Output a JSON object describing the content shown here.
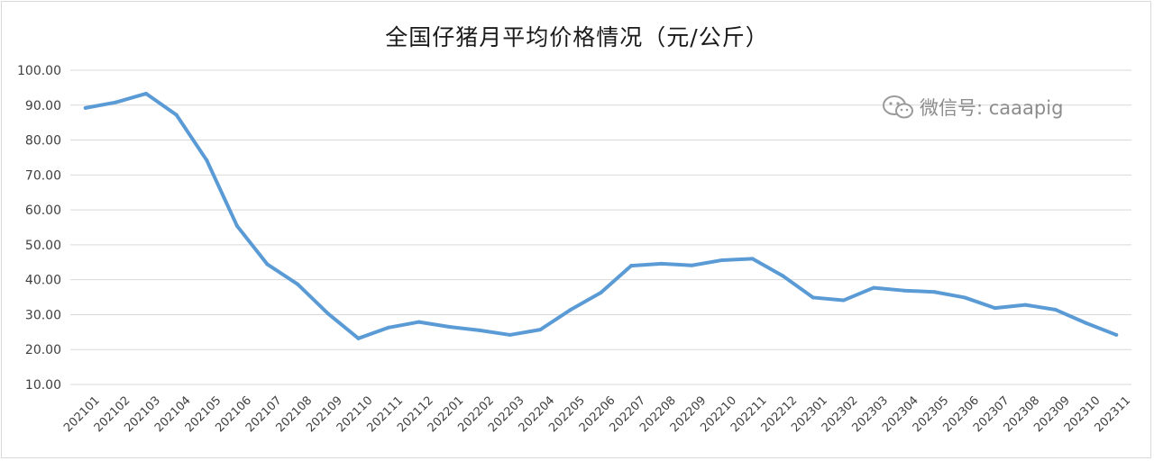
{
  "chart_data": {
    "type": "line",
    "title": "全国仔猪月平均价格情况（元/公斤）",
    "xlabel": "",
    "ylabel": "",
    "ylim": [
      10,
      100
    ],
    "yticks": [
      "100.00",
      "90.00",
      "80.00",
      "70.00",
      "60.00",
      "50.00",
      "40.00",
      "30.00",
      "20.00",
      "10.00"
    ],
    "grid": true,
    "legend": "none",
    "line_color": "#5b9bd5",
    "categories": [
      "202101",
      "202102",
      "202103",
      "202104",
      "202105",
      "202106",
      "202107",
      "202108",
      "202109",
      "202110",
      "202111",
      "202112",
      "202201",
      "202202",
      "202203",
      "202204",
      "202205",
      "202206",
      "202207",
      "202208",
      "202209",
      "202210",
      "202211",
      "202212",
      "202301",
      "202302",
      "202303",
      "202304",
      "202305",
      "202306",
      "202307",
      "202308",
      "202309",
      "202310",
      "202311"
    ],
    "series": [
      {
        "values": [
          89.2,
          90.8,
          93.3,
          87.2,
          74.2,
          55.4,
          44.4,
          38.7,
          30.3,
          23.2,
          26.3,
          27.9,
          26.5,
          25.5,
          24.2,
          25.7,
          31.4,
          36.3,
          44.0,
          44.6,
          44.1,
          45.6,
          46.0,
          41.1,
          34.9,
          34.1,
          37.7,
          36.9,
          36.5,
          34.9,
          31.9,
          32.8,
          31.4,
          27.6,
          24.2
        ]
      }
    ]
  },
  "watermark": {
    "text": "微信号: caaapig",
    "icon": "wechat-icon"
  }
}
